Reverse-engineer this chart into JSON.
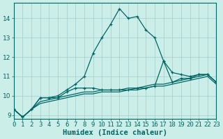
{
  "xlabel": "Humidex (Indice chaleur)",
  "bg_color": "#cceee8",
  "line_color": "#006666",
  "xlim": [
    0,
    23
  ],
  "ylim": [
    8.8,
    14.8
  ],
  "x": [
    0,
    1,
    2,
    3,
    4,
    5,
    6,
    7,
    8,
    9,
    10,
    11,
    12,
    13,
    14,
    15,
    16,
    17,
    18,
    19,
    20,
    21,
    22,
    23
  ],
  "series_peak": [
    9.3,
    8.9,
    9.3,
    9.9,
    9.9,
    10.0,
    10.3,
    10.6,
    11.0,
    12.2,
    13.0,
    13.7,
    14.5,
    14.0,
    14.1,
    13.4,
    13.0,
    11.8,
    11.2,
    11.1,
    11.0,
    11.1,
    11.1,
    10.7
  ],
  "series_mid": [
    9.3,
    8.9,
    9.3,
    9.9,
    9.9,
    9.9,
    10.2,
    10.4,
    10.4,
    10.4,
    10.3,
    10.3,
    10.3,
    10.3,
    10.4,
    10.4,
    10.5,
    11.8,
    10.7,
    10.9,
    10.9,
    11.1,
    11.1,
    10.7
  ],
  "series_low1": [
    9.3,
    8.9,
    9.3,
    9.7,
    9.8,
    9.9,
    10.0,
    10.1,
    10.2,
    10.2,
    10.3,
    10.3,
    10.3,
    10.4,
    10.4,
    10.5,
    10.6,
    10.6,
    10.7,
    10.8,
    10.9,
    11.0,
    11.1,
    10.7
  ],
  "series_low2": [
    9.3,
    8.9,
    9.3,
    9.6,
    9.7,
    9.8,
    9.9,
    10.0,
    10.1,
    10.1,
    10.2,
    10.2,
    10.2,
    10.3,
    10.3,
    10.4,
    10.5,
    10.5,
    10.6,
    10.7,
    10.8,
    10.9,
    11.0,
    10.6
  ],
  "xticks": [
    0,
    1,
    2,
    3,
    4,
    5,
    6,
    7,
    8,
    9,
    10,
    11,
    12,
    13,
    14,
    15,
    16,
    17,
    18,
    19,
    20,
    21,
    22,
    23
  ],
  "yticks": [
    9,
    10,
    11,
    12,
    13,
    14
  ],
  "tick_fontsize": 6.5,
  "label_fontsize": 7.5
}
